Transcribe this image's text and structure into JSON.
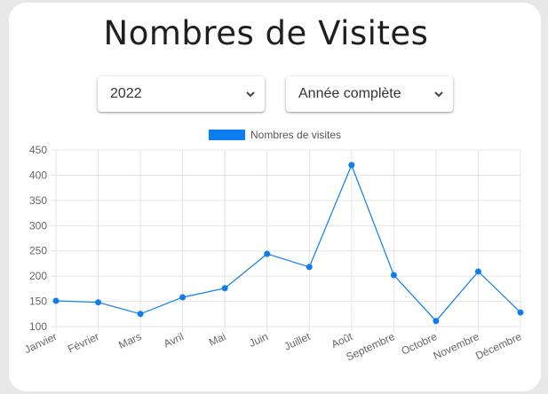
{
  "page": {
    "title": "Nombres de Visites"
  },
  "filters": {
    "year": {
      "selected": "2022"
    },
    "period": {
      "selected": "Année complète"
    }
  },
  "colors": {
    "series": "#0d7ef0",
    "grid": "#e4e4e4",
    "background": "#ffffff"
  },
  "chart_data": {
    "type": "line",
    "legend_position": "top",
    "grid": true,
    "categories": [
      "Janvier",
      "Février",
      "Mars",
      "Avril",
      "Mai",
      "Juin",
      "Juillet",
      "Août",
      "Septembre",
      "Octobre",
      "Novembre",
      "Décembre"
    ],
    "series": [
      {
        "name": "Nombres de visites",
        "values": [
          151,
          148,
          125,
          158,
          176,
          244,
          218,
          420,
          202,
          111,
          209,
          128
        ]
      }
    ],
    "ylim": [
      100,
      450
    ],
    "yticks": [
      100,
      150,
      200,
      250,
      300,
      350,
      400,
      450
    ]
  }
}
